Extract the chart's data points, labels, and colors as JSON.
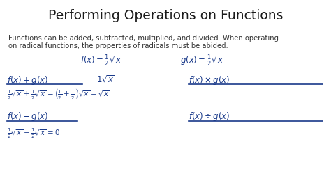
{
  "title": "Performing Operations on Functions",
  "title_fontsize": 13.5,
  "title_color": "#1a1a1a",
  "bg_color": "#ffffff",
  "body_text1": "Functions can be added, subtracted, multiplied, and divided. When operating",
  "body_text2": "on radical functions, the properties of radicals must be abided.",
  "body_fontsize": 7.2,
  "hw_color": "#1a3a8a",
  "hw_fontsize": 8.5,
  "hw_small_fontsize": 7.5
}
